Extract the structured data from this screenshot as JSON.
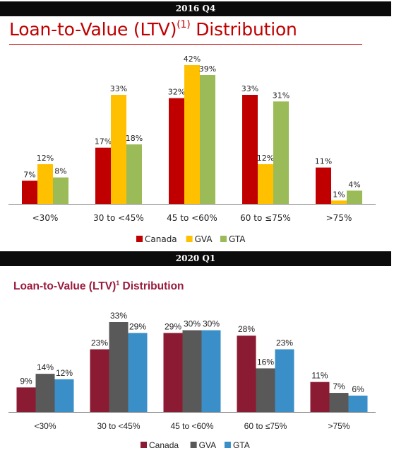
{
  "panels": [
    {
      "banner": "2016 Q4",
      "title_main": "Loan-to-Value (LTV)",
      "title_sup": "(1)",
      "title_end": " Distribution"
    },
    {
      "banner": "2020 Q1",
      "title_main": "Loan-to-Value (LTV)",
      "title_sup": "1",
      "title_end": " Distribution"
    }
  ],
  "chart_data": [
    {
      "type": "bar",
      "title": "Loan-to-Value (LTV)(1) Distribution",
      "period": "2016 Q4",
      "categories": [
        "<30%",
        "30 to <45%",
        "45 to <60%",
        "60 to ≤75%",
        ">75%"
      ],
      "series": [
        {
          "name": "Canada",
          "color": "#c00000",
          "values": [
            7,
            17,
            32,
            33,
            11
          ],
          "labels": [
            "7%",
            "17%",
            "32%",
            "33%",
            "11%"
          ]
        },
        {
          "name": "GVA",
          "color": "#ffc000",
          "values": [
            12,
            33,
            42,
            12,
            1
          ],
          "labels": [
            "12%",
            "33%",
            "42%",
            "12%",
            "1%"
          ]
        },
        {
          "name": "GTA",
          "color": "#9bbb59",
          "values": [
            8,
            18,
            39,
            31,
            4
          ],
          "labels": [
            "8%",
            "18%",
            "39%",
            "31%",
            "4%"
          ]
        }
      ],
      "ylim": [
        0,
        42
      ],
      "legend": "bottom-center",
      "grid": false
    },
    {
      "type": "bar",
      "title": "Loan-to-Value (LTV)1 Distribution",
      "period": "2020 Q1",
      "categories": [
        "<30%",
        "30 to <45%",
        "45 to <60%",
        "60 to ≤75%",
        ">75%"
      ],
      "series": [
        {
          "name": "Canada",
          "color": "#8b1a33",
          "values": [
            9,
            23,
            29,
            28,
            11
          ],
          "labels": [
            "9%",
            "23%",
            "29%",
            "28%",
            "11%"
          ]
        },
        {
          "name": "GVA",
          "color": "#595959",
          "values": [
            14,
            33,
            30,
            16,
            7
          ],
          "labels": [
            "14%",
            "33%",
            "30%",
            "16%",
            "7%"
          ]
        },
        {
          "name": "GTA",
          "color": "#3a8fc8",
          "values": [
            12,
            29,
            30,
            23,
            6
          ],
          "labels": [
            "12%",
            "29%",
            "30%",
            "23%",
            "6%"
          ]
        }
      ],
      "ylim": [
        0,
        33
      ],
      "legend": "bottom-center",
      "grid": false
    }
  ]
}
